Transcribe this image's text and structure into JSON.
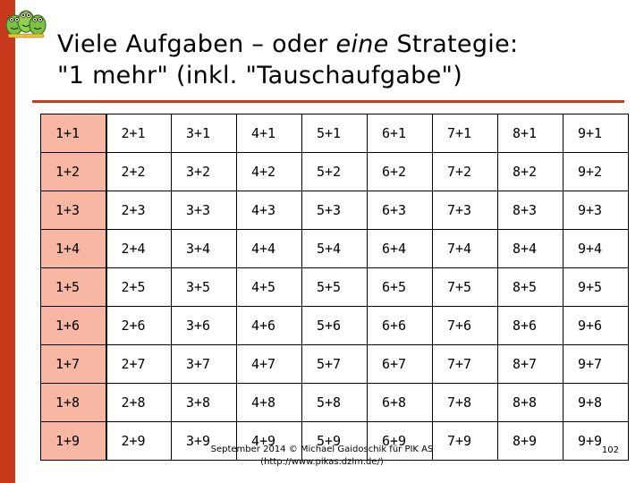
{
  "slide": {
    "title_part1": "Viele Aufgaben – oder ",
    "title_em": "eine",
    "title_part2": " Strategie:",
    "title_line2": "\"1 mehr\" (inkl. \"Tauschaufgabe\")",
    "accent_color": "#c8381a",
    "first_column_color": "#f8b7a2",
    "logo_icon": "frog-mascots-icon"
  },
  "table": {
    "rows": [
      [
        "1+1",
        "2+1",
        "3+1",
        "4+1",
        "5+1",
        "6+1",
        "7+1",
        "8+1",
        "9+1"
      ],
      [
        "1+2",
        "2+2",
        "3+2",
        "4+2",
        "5+2",
        "6+2",
        "7+2",
        "8+2",
        "9+2"
      ],
      [
        "1+3",
        "2+3",
        "3+3",
        "4+3",
        "5+3",
        "6+3",
        "7+3",
        "8+3",
        "9+3"
      ],
      [
        "1+4",
        "2+4",
        "3+4",
        "4+4",
        "5+4",
        "6+4",
        "7+4",
        "8+4",
        "9+4"
      ],
      [
        "1+5",
        "2+5",
        "3+5",
        "4+5",
        "5+5",
        "6+5",
        "7+5",
        "8+5",
        "9+5"
      ],
      [
        "1+6",
        "2+6",
        "3+6",
        "4+6",
        "5+6",
        "6+6",
        "7+6",
        "8+6",
        "9+6"
      ],
      [
        "1+7",
        "2+7",
        "3+7",
        "4+7",
        "5+7",
        "6+7",
        "7+7",
        "8+7",
        "9+7"
      ],
      [
        "1+8",
        "2+8",
        "3+8",
        "4+8",
        "5+8",
        "6+8",
        "7+8",
        "8+8",
        "9+8"
      ],
      [
        "1+9",
        "2+9",
        "3+9",
        "4+9",
        "5+9",
        "6+9",
        "7+9",
        "8+9",
        "9+9"
      ]
    ]
  },
  "footer": {
    "line1": "September 2014 © Michael Gaidoschik für PIK AS",
    "line2": "(http://www.pikas.dzlm.de/)",
    "page_number": "102"
  }
}
